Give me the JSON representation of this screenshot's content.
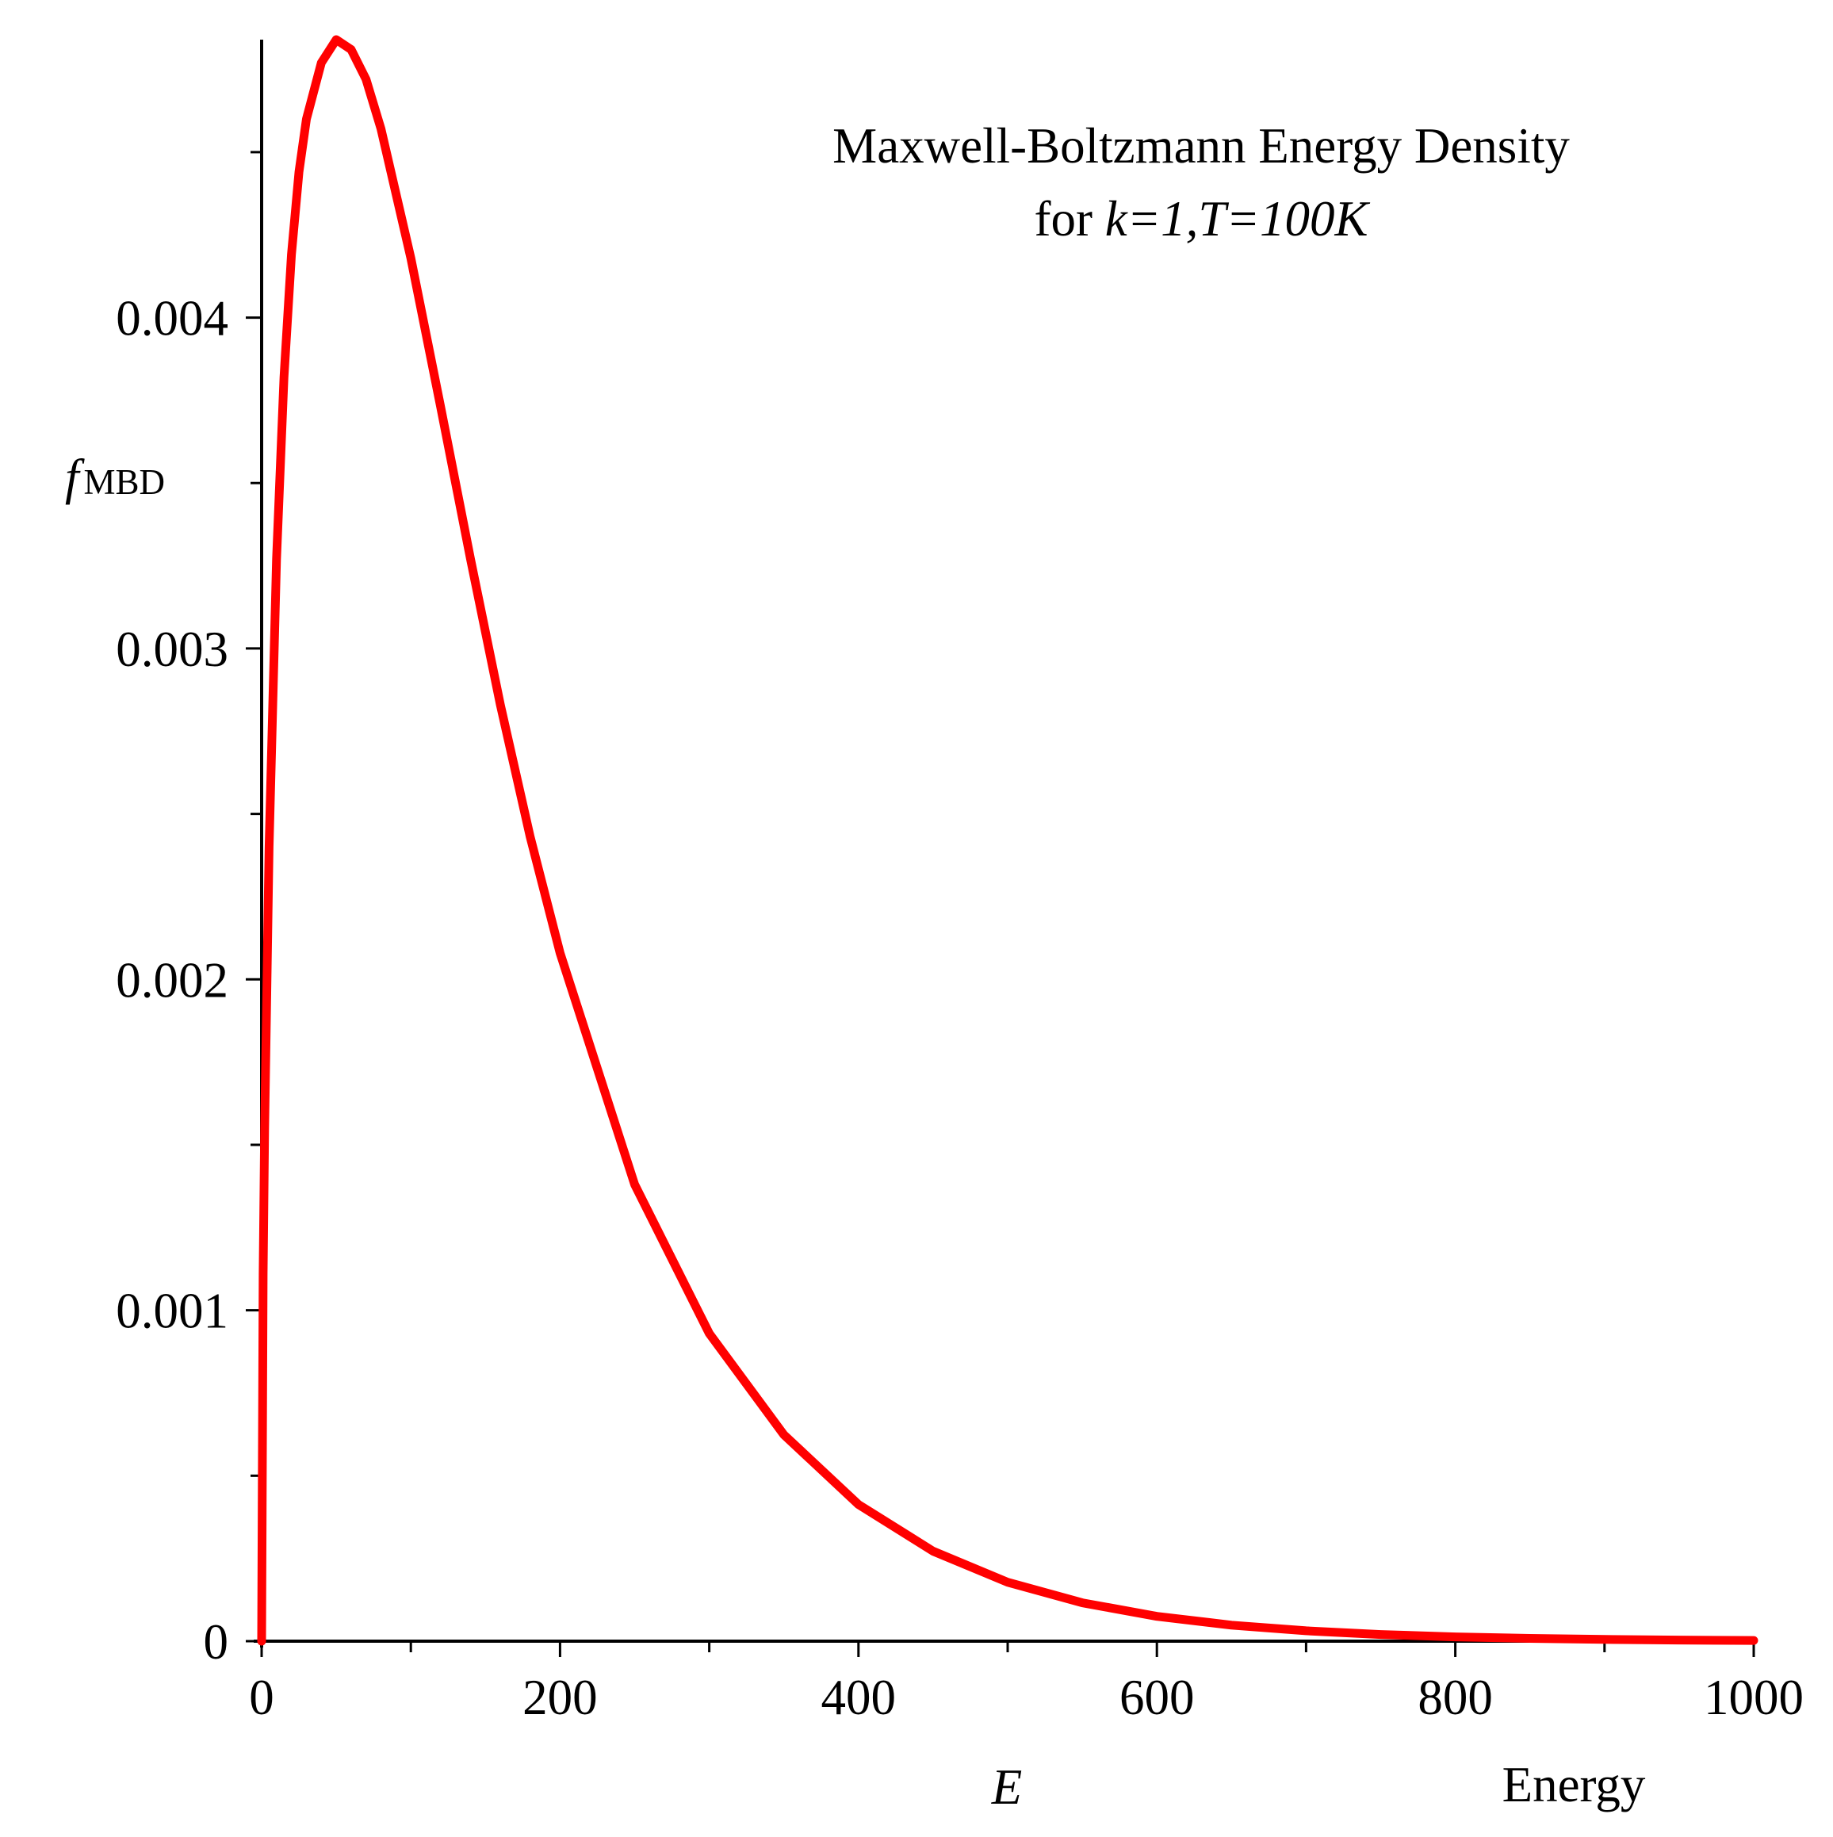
{
  "chart_data": {
    "type": "line",
    "title": "Maxwell-Boltzmann Energy Density",
    "subtitle_prefix": "for ",
    "subtitle_params": "k=1,T=100K",
    "xlabel": "E",
    "xlabel_extra": "Energy",
    "ylabel_main": "f",
    "ylabel_sub": "MBD",
    "xlim": [
      0,
      1000
    ],
    "ylim": [
      0,
      0.00484
    ],
    "x_major_ticks": [
      0,
      200,
      400,
      600,
      800,
      1000
    ],
    "x_tick_labels": [
      "0",
      "200",
      "400",
      "600",
      "800",
      "1000"
    ],
    "x_minor_ticks": [
      100,
      300,
      500,
      700,
      900
    ],
    "y_major_ticks": [
      0,
      0.001,
      0.002,
      0.003,
      0.004
    ],
    "y_tick_labels": [
      "0",
      "0.001",
      "0.002",
      "0.003",
      "0.004"
    ],
    "y_minor_ticks": [
      0.0005,
      0.0015,
      0.0025,
      0.0035,
      0.0045
    ],
    "grid": false,
    "series": [
      {
        "name": "f_MBD",
        "color": "#ff0000",
        "x": [
          0,
          1,
          2,
          5,
          10,
          15,
          20,
          25,
          30,
          40,
          50,
          60,
          70,
          80,
          100,
          120,
          140,
          160,
          180,
          200,
          250,
          300,
          350,
          400,
          450,
          500,
          550,
          600,
          650,
          700,
          750,
          800,
          850,
          900,
          950,
          1000
        ],
        "values": [
          0,
          0.00111,
          0.00155,
          0.0024,
          0.00327,
          0.00382,
          0.00419,
          0.00444,
          0.0046,
          0.00477,
          0.00484,
          0.00481,
          0.00472,
          0.00457,
          0.00418,
          0.00373,
          0.00327,
          0.00283,
          0.00243,
          0.00208,
          0.00138,
          0.00093,
          0.000624,
          0.000413,
          0.000272,
          0.000178,
          0.000116,
          7.51e-05,
          4.85e-05,
          3.13e-05,
          2.01e-05,
          1.29e-05,
          8.3e-06,
          5.3e-06,
          3.4e-06,
          2.1e-06
        ]
      }
    ]
  }
}
